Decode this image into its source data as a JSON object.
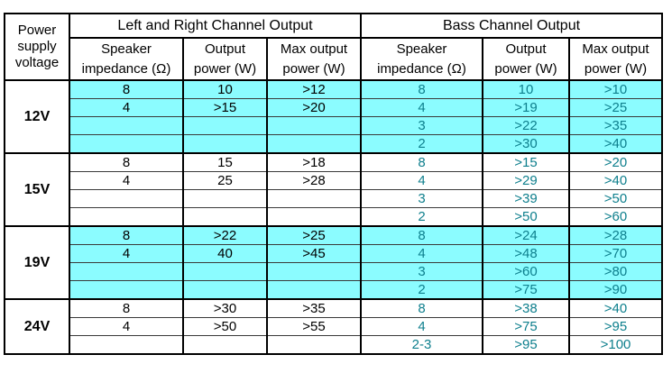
{
  "table": {
    "corner_header": "Power\nsupply\nvoltage",
    "group_headers": [
      "Left and Right Channel Output",
      "Bass Channel Output"
    ],
    "subheaders": [
      "Speaker\nimpedance (Ω)",
      "Output\npower (W)",
      "Max output\npower (W)"
    ],
    "sections": [
      {
        "voltage": "12V",
        "shaded": true,
        "rows": [
          {
            "lr": [
              "8",
              "10",
              ">12"
            ],
            "bass": [
              "8",
              "10",
              ">10"
            ]
          },
          {
            "lr": [
              "4",
              ">15",
              ">20"
            ],
            "bass": [
              "4",
              ">19",
              ">25"
            ]
          },
          {
            "lr": [
              "",
              "",
              ""
            ],
            "bass": [
              "3",
              ">22",
              ">35"
            ]
          },
          {
            "lr": [
              "",
              "",
              ""
            ],
            "bass": [
              "2",
              ">30",
              ">40"
            ]
          }
        ]
      },
      {
        "voltage": "15V",
        "shaded": false,
        "rows": [
          {
            "lr": [
              "8",
              "15",
              ">18"
            ],
            "bass": [
              "8",
              ">15",
              ">20"
            ]
          },
          {
            "lr": [
              "4",
              "25",
              ">28"
            ],
            "bass": [
              "4",
              ">29",
              ">40"
            ]
          },
          {
            "lr": [
              "",
              "",
              ""
            ],
            "bass": [
              "3",
              ">39",
              ">50"
            ]
          },
          {
            "lr": [
              "",
              "",
              ""
            ],
            "bass": [
              "2",
              ">50",
              ">60"
            ]
          }
        ]
      },
      {
        "voltage": "19V",
        "shaded": true,
        "rows": [
          {
            "lr": [
              "8",
              ">22",
              ">25"
            ],
            "bass": [
              "8",
              ">24",
              ">28"
            ]
          },
          {
            "lr": [
              "4",
              "40",
              ">45"
            ],
            "bass": [
              "4",
              ">48",
              ">70"
            ]
          },
          {
            "lr": [
              "",
              "",
              ""
            ],
            "bass": [
              "3",
              ">60",
              ">80"
            ]
          },
          {
            "lr": [
              "",
              "",
              ""
            ],
            "bass": [
              "2",
              ">75",
              ">90"
            ]
          }
        ]
      },
      {
        "voltage": "24V",
        "shaded": false,
        "rows": [
          {
            "lr": [
              "8",
              ">30",
              ">35"
            ],
            "bass": [
              "8",
              ">38",
              ">40"
            ]
          },
          {
            "lr": [
              "4",
              ">50",
              ">55"
            ],
            "bass": [
              "4",
              ">75",
              ">95"
            ]
          },
          {
            "lr": [
              "",
              "",
              ""
            ],
            "bass": [
              "2-3",
              ">95",
              ">100"
            ]
          }
        ]
      }
    ]
  },
  "colors": {
    "row_highlight": "#8bfcff",
    "bass_text": "#0e7f8d",
    "lr_text": "#000000",
    "border": "#000000",
    "row_divider": "#3a3a3a"
  }
}
